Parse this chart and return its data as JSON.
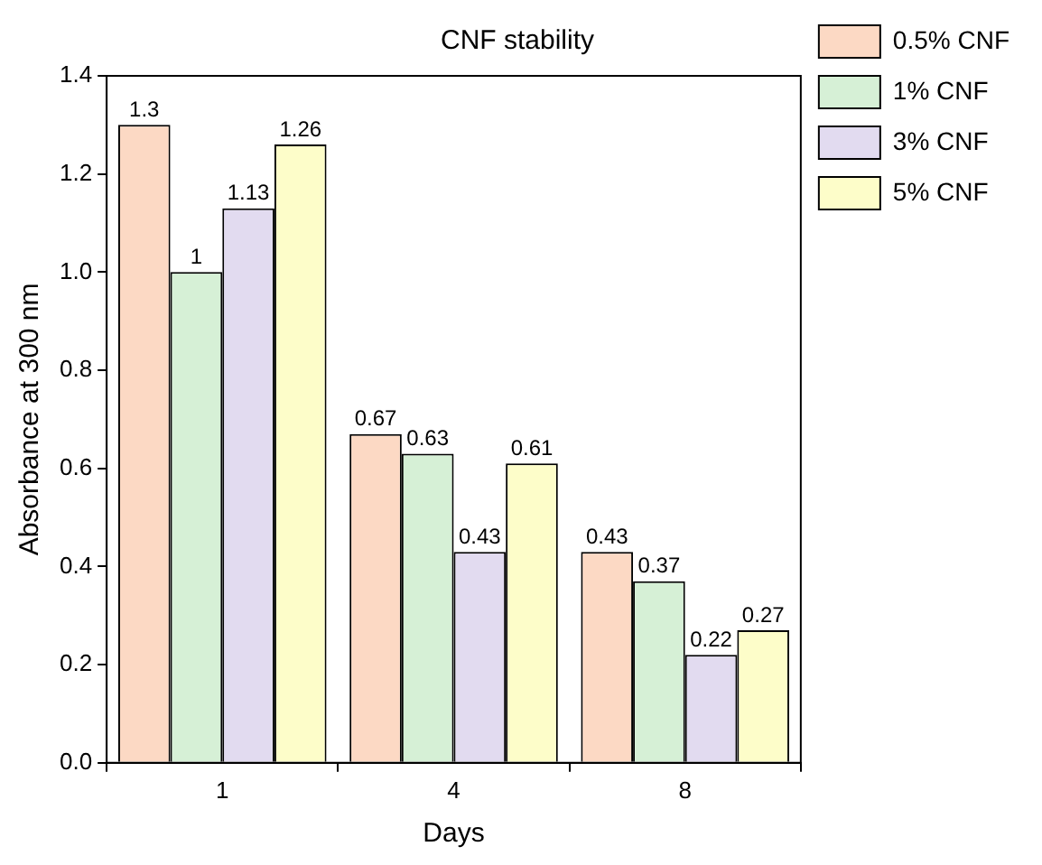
{
  "chart_data": {
    "type": "bar",
    "title": "CNF stability",
    "xlabel": "Days",
    "ylabel": "Absorbance at 300 nm",
    "categories": [
      "1",
      "4",
      "8"
    ],
    "series": [
      {
        "name": "0.5% CNF",
        "color": "#fcd9c4",
        "values": [
          1.3,
          0.67,
          0.43
        ]
      },
      {
        "name": "1% CNF",
        "color": "#d6f0d6",
        "values": [
          1,
          0.63,
          0.37
        ]
      },
      {
        "name": "3% CNF",
        "color": "#e2dbf0",
        "values": [
          1.13,
          0.43,
          0.22
        ]
      },
      {
        "name": "5% CNF",
        "color": "#fdfdc9",
        "values": [
          1.26,
          0.61,
          0.27
        ]
      }
    ],
    "ylim": [
      0,
      1.4
    ],
    "yticks": [
      {
        "value": 0,
        "label": "0.0"
      },
      0.2,
      0.4,
      0.6,
      0.8,
      {
        "value": 1,
        "label": "1.0"
      },
      1.2,
      1.4
    ],
    "grid": false,
    "legend": "top right",
    "data_labels": true
  }
}
